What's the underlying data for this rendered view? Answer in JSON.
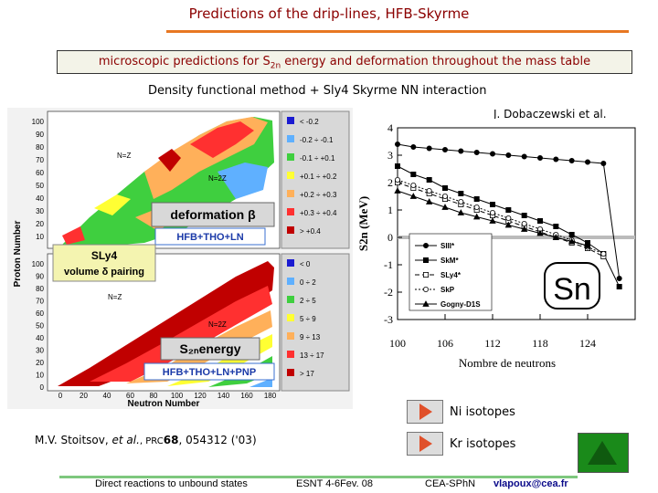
{
  "title": "Predictions of the drip-lines, HFB-Skyrme",
  "subtitle": {
    "pre": "microscopic predictions for S",
    "sub": "2n",
    "post": " energy and deformation throughout the mass table"
  },
  "method": "Density functional method + Sly4 Skyrme NN interaction",
  "author": "J. Dobaczewski et al.",
  "left_figure": {
    "ylabel": "Proton Number",
    "xlabel": "Neutron Number",
    "x_ticks": [
      "0",
      "20",
      "40",
      "60",
      "80",
      "100",
      "120",
      "140",
      "160",
      "180"
    ],
    "y_ticks_top": [
      "100",
      "90",
      "80",
      "70",
      "60",
      "50",
      "40",
      "30",
      "20",
      "10"
    ],
    "y_ticks_bottom": [
      "100",
      "90",
      "80",
      "70",
      "60",
      "50",
      "40",
      "30",
      "20",
      "10",
      "0"
    ],
    "nz_label": "N=Z",
    "n22_label": "N=2Z",
    "deformation_label": "deformation β",
    "deformation_method": "HFB+THO+LN",
    "sly4_label": "SLy4",
    "pairing_label": "volume δ pairing",
    "s2n_label": "S₂ₙenergy",
    "s2n_method": "HFB+THO+LN+PNP",
    "legend_top": [
      {
        "label": "< -0.2",
        "color": "#1b1bd1"
      },
      {
        "label": "-0.2 ÷ -0.1",
        "color": "#5fb0ff"
      },
      {
        "label": "-0.1 ÷ +0.1",
        "color": "#3fcf3f"
      },
      {
        "label": "+0.1 ÷ +0.2",
        "color": "#ffff33"
      },
      {
        "label": "+0.2 ÷ +0.3",
        "color": "#ffb05a"
      },
      {
        "label": "+0.3 ÷ +0.4",
        "color": "#ff3030"
      },
      {
        "label": "> +0.4",
        "color": "#c00000"
      }
    ],
    "legend_bottom": [
      {
        "label": "< 0",
        "color": "#1b1bd1"
      },
      {
        "label": "0 ÷ 2",
        "color": "#5fb0ff"
      },
      {
        "label": "2 ÷ 5",
        "color": "#3fcf3f"
      },
      {
        "label": "5 ÷ 9",
        "color": "#ffff33"
      },
      {
        "label": "9 ÷ 13",
        "color": "#ffb05a"
      },
      {
        "label": "13 ÷ 17",
        "color": "#ff3030"
      },
      {
        "label": "> 17",
        "color": "#c00000"
      }
    ]
  },
  "chart_data": {
    "type": "line",
    "xlabel": "Nombre de neutrons",
    "ylabel": "S2n (MeV)",
    "xlim": [
      100,
      130
    ],
    "ylim": [
      -3,
      4
    ],
    "x_ticks": [
      "100",
      "106",
      "112",
      "118",
      "124"
    ],
    "y_ticks": [
      "4",
      "3",
      "2",
      "1",
      "0",
      "-1",
      "-2",
      "-3"
    ],
    "annotation": "Sn",
    "series": [
      {
        "name": "SIII*",
        "marker": "filled-circle",
        "x": [
          100,
          102,
          104,
          106,
          108,
          110,
          112,
          114,
          116,
          118,
          120,
          122,
          124,
          126,
          128
        ],
        "values": [
          3.4,
          3.3,
          3.25,
          3.2,
          3.15,
          3.1,
          3.05,
          3.0,
          2.95,
          2.9,
          2.85,
          2.8,
          2.75,
          2.7,
          -1.5
        ]
      },
      {
        "name": "SkM*",
        "marker": "filled-square",
        "x": [
          100,
          102,
          104,
          106,
          108,
          110,
          112,
          114,
          116,
          118,
          120,
          122,
          124,
          126,
          128
        ],
        "values": [
          2.6,
          2.3,
          2.1,
          1.8,
          1.6,
          1.4,
          1.2,
          1.0,
          0.8,
          0.6,
          0.4,
          0.1,
          -0.2,
          -0.6,
          -1.8
        ]
      },
      {
        "name": "SLy4*",
        "marker": "open-square",
        "x": [
          100,
          102,
          104,
          106,
          108,
          110,
          112,
          114,
          116,
          118,
          120,
          122,
          124,
          126
        ],
        "values": [
          2.0,
          1.8,
          1.6,
          1.4,
          1.2,
          1.0,
          0.8,
          0.6,
          0.4,
          0.2,
          0.0,
          -0.2,
          -0.4,
          -0.7
        ]
      },
      {
        "name": "SkP",
        "marker": "open-circle",
        "x": [
          100,
          102,
          104,
          106,
          108,
          110,
          112,
          114,
          116,
          118,
          120,
          122,
          124,
          126
        ],
        "values": [
          2.1,
          1.9,
          1.7,
          1.5,
          1.3,
          1.1,
          0.9,
          0.7,
          0.5,
          0.3,
          0.1,
          -0.1,
          -0.35,
          -0.6
        ]
      },
      {
        "name": "Gogny-D1S",
        "marker": "filled-triangle",
        "x": [
          100,
          102,
          104,
          106,
          108,
          110,
          112,
          114,
          116,
          118,
          120,
          122,
          124
        ],
        "values": [
          1.7,
          1.5,
          1.3,
          1.1,
          0.9,
          0.75,
          0.6,
          0.45,
          0.3,
          0.15,
          0.0,
          -0.15,
          -0.3
        ]
      }
    ]
  },
  "buttons": {
    "ni": "Ni isotopes",
    "kr": "Kr isotopes"
  },
  "reference": {
    "authors": "M.V. Stoitsov, ",
    "etal": "et al.",
    "journal": ", PRC",
    "volume": "68",
    "rest": ", 054312 ('03)"
  },
  "footer": {
    "topic": "Direct reactions to unbound states",
    "event": "ESNT 4-6Fev. 08",
    "institute": "CEA-SPhN",
    "email": "vlapoux@cea.fr"
  },
  "colors": {
    "title": "#8b0000",
    "rule_orange": "#e87722",
    "rule_green": "#7ec87e",
    "home_green": "#1a8a1a"
  }
}
